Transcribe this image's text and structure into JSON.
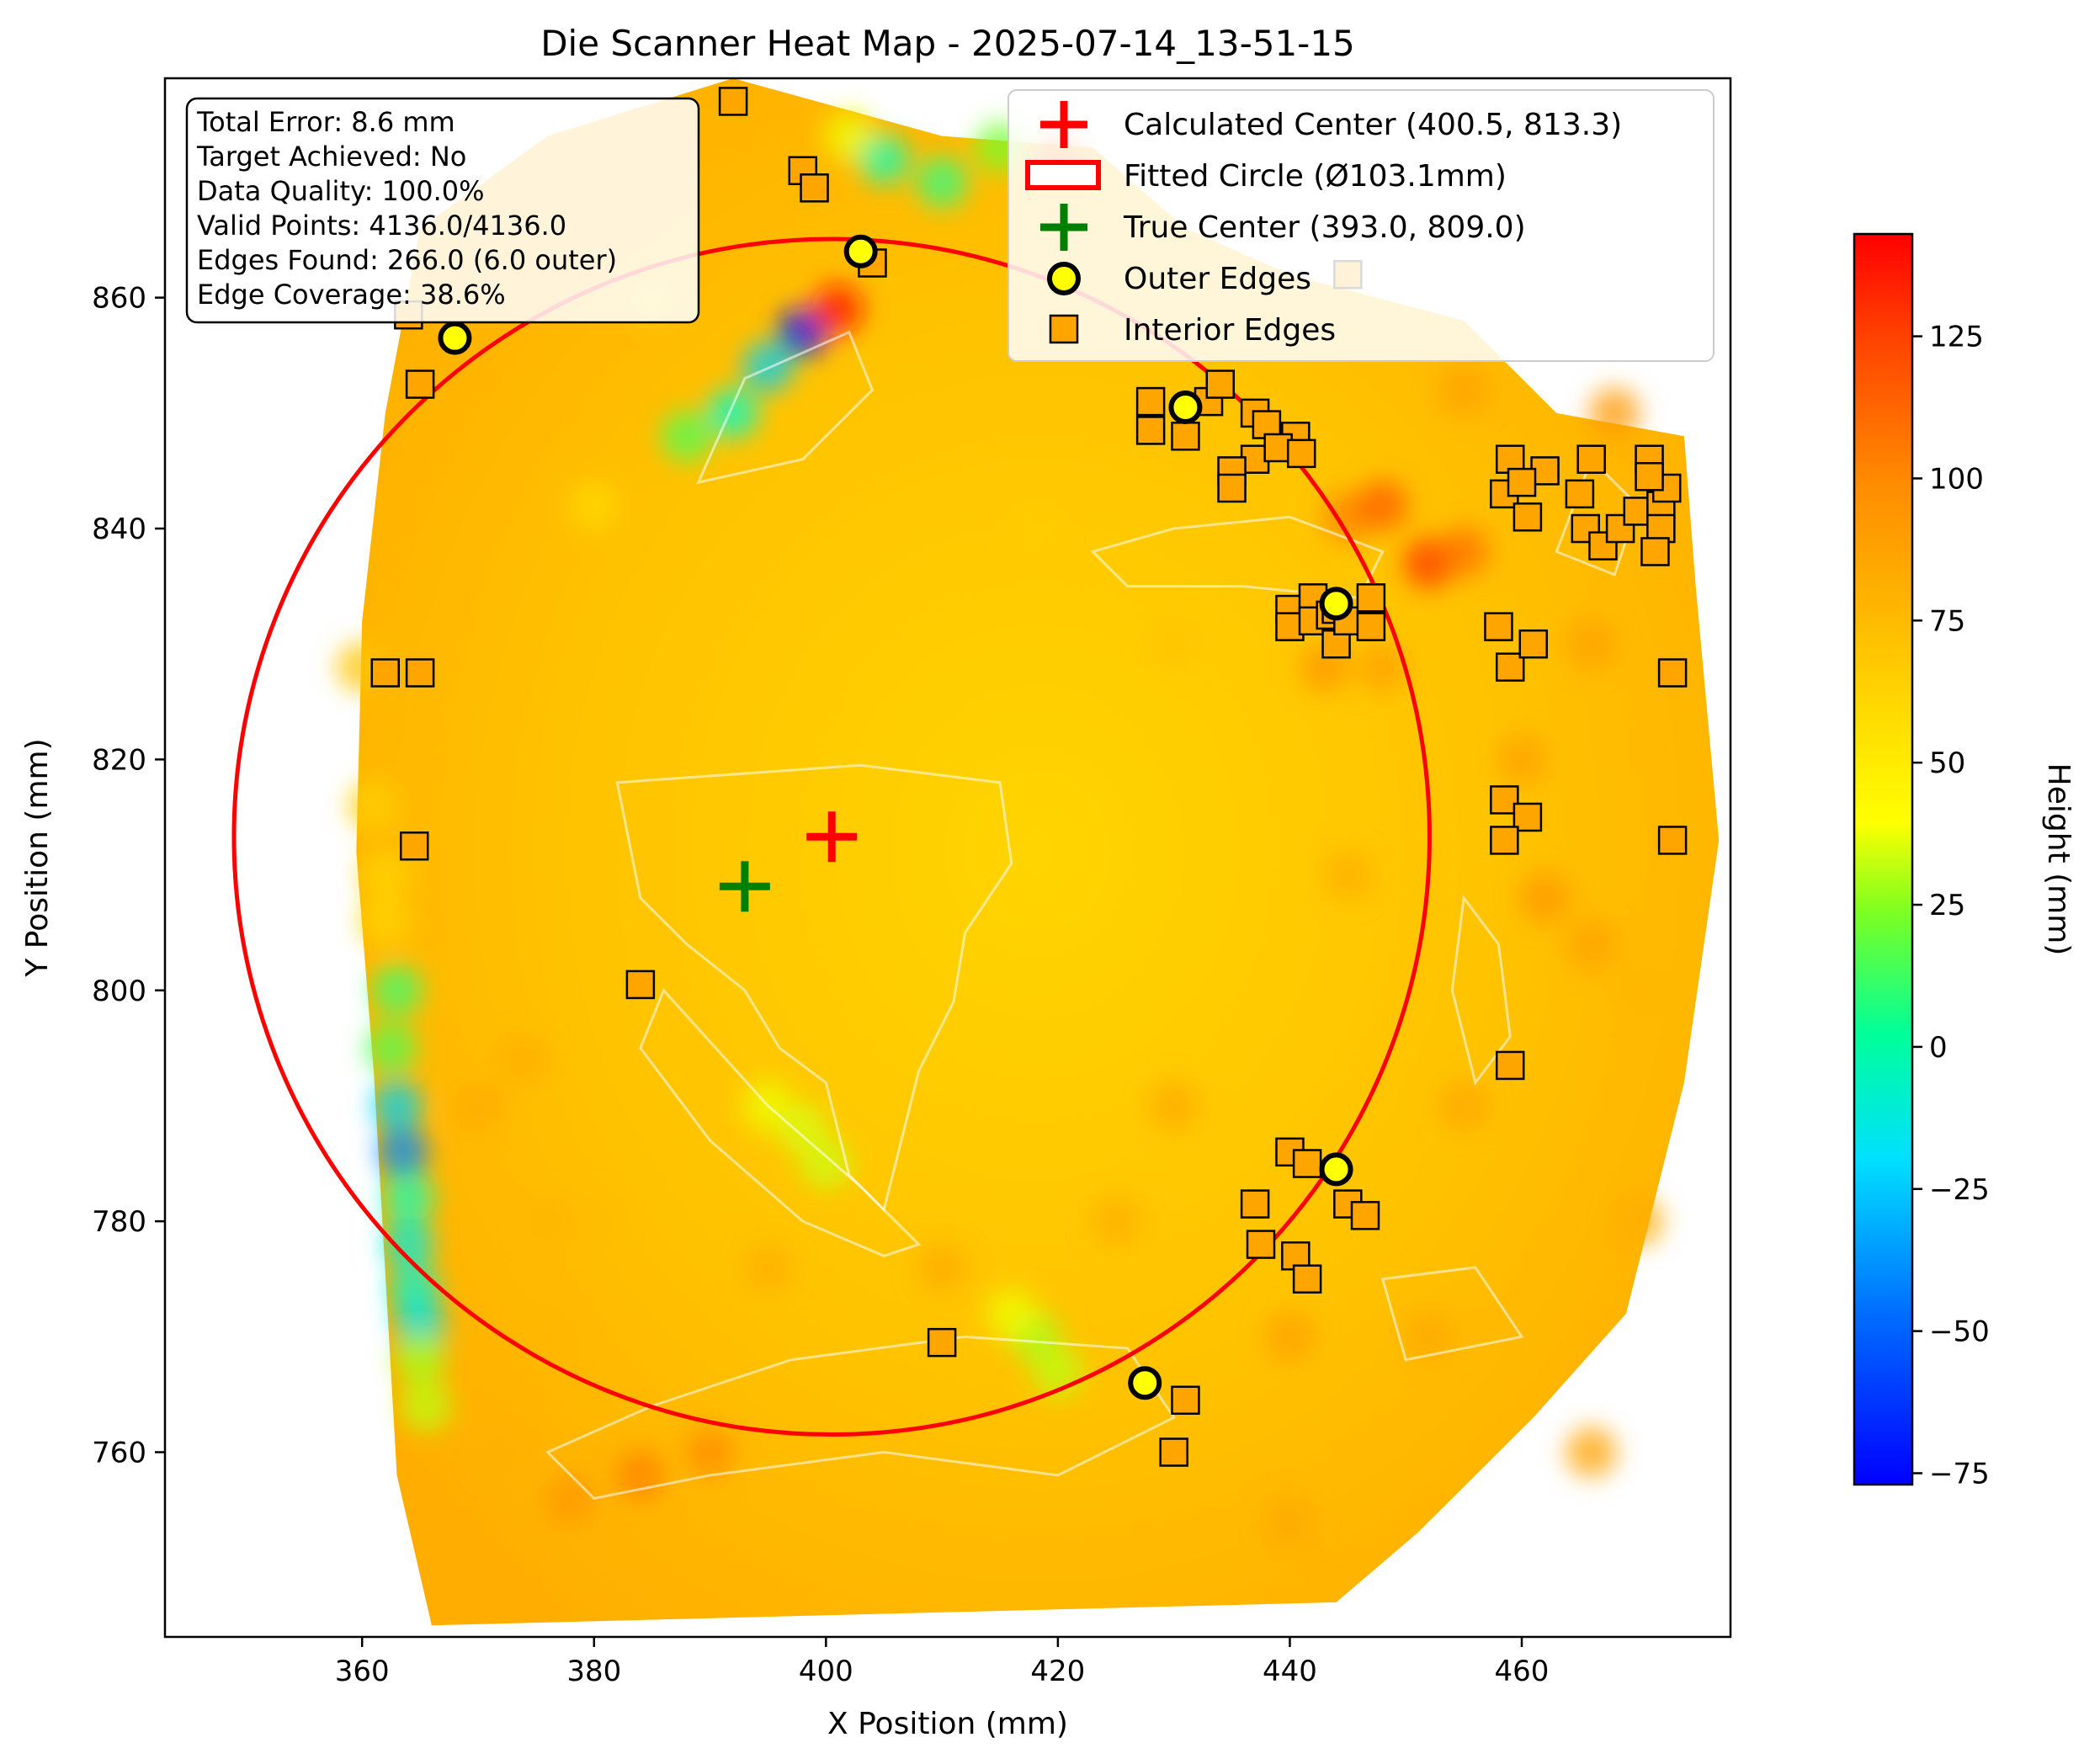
{
  "chart_data": {
    "type": "heatmap",
    "title": "Die Scanner Heat Map - 2025-07-14_13-51-15",
    "xlabel": "X Position (mm)",
    "ylabel": "Y Position (mm)",
    "xlim": [
      343,
      478
    ],
    "ylim": [
      744,
      879
    ],
    "x_ticks": [
      360,
      380,
      400,
      420,
      440,
      460
    ],
    "y_ticks": [
      760,
      780,
      800,
      820,
      840,
      860
    ],
    "grid": false,
    "colorbar": {
      "label": "Height (mm)",
      "range": [
        -77,
        143
      ],
      "ticks": [
        -75,
        -50,
        -25,
        0,
        25,
        50,
        75,
        100,
        125
      ],
      "colormap": [
        "#0000ff",
        "#00c8ff",
        "#00ffcc",
        "#66ff33",
        "#ffff00",
        "#ffc000",
        "#ff8000",
        "#ff0000"
      ]
    },
    "contour_levels": [
      40,
      60,
      80,
      100
    ],
    "stats": [
      "Total Error: 8.6 mm",
      "Target Achieved: No",
      "Data Quality: 100.0%",
      "Valid Points: 4136.0/4136.0",
      "Edges Found: 266.0 (6.0 outer)",
      "Edge Coverage: 38.6%"
    ],
    "legend": {
      "position": "top-right",
      "entries": [
        "Calculated Center (400.5, 813.3)",
        "Fitted Circle (Ø103.1mm)",
        "True Center (393.0, 809.0)",
        "Outer Edges",
        "Interior Edges"
      ]
    },
    "calculated_center": [
      400.5,
      813.3
    ],
    "true_center": [
      393.0,
      809.0
    ],
    "fitted_circle": {
      "center": [
        400.5,
        813.3
      ],
      "diameter": 103.1
    },
    "outer_edges": [
      [
        403,
        864
      ],
      [
        368,
        856.5
      ],
      [
        444,
        833.5
      ],
      [
        444,
        784.5
      ],
      [
        427.5,
        766
      ],
      [
        431,
        850.5
      ]
    ],
    "interior_edges": [
      [
        392,
        877
      ],
      [
        398,
        871
      ],
      [
        399,
        869.5
      ],
      [
        404,
        863
      ],
      [
        445,
        862
      ],
      [
        364,
        858.5
      ],
      [
        365,
        852.5
      ],
      [
        437,
        850
      ],
      [
        428,
        851
      ],
      [
        428,
        848.5
      ],
      [
        431,
        848
      ],
      [
        433,
        851
      ],
      [
        434,
        852.5
      ],
      [
        438,
        849
      ],
      [
        437,
        846
      ],
      [
        440.5,
        848
      ],
      [
        439,
        847
      ],
      [
        441,
        846.5
      ],
      [
        435,
        845
      ],
      [
        435,
        843.5
      ],
      [
        459,
        846
      ],
      [
        462,
        845
      ],
      [
        466,
        846
      ],
      [
        471,
        846
      ],
      [
        458.5,
        843
      ],
      [
        460,
        844
      ],
      [
        460.5,
        841
      ],
      [
        465,
        843
      ],
      [
        465.5,
        840
      ],
      [
        467,
        838.5
      ],
      [
        468.5,
        840
      ],
      [
        470,
        841.5
      ],
      [
        472,
        842
      ],
      [
        472.5,
        843.5
      ],
      [
        471,
        844.5
      ],
      [
        472,
        840
      ],
      [
        471.5,
        838
      ],
      [
        440,
        833
      ],
      [
        440,
        831.5
      ],
      [
        442,
        834
      ],
      [
        442,
        832
      ],
      [
        443.5,
        832.5
      ],
      [
        444,
        830
      ],
      [
        444,
        833
      ],
      [
        445,
        832
      ],
      [
        447,
        834
      ],
      [
        447,
        831.5
      ],
      [
        458,
        831.5
      ],
      [
        459,
        828
      ],
      [
        461,
        830
      ],
      [
        362,
        827.5
      ],
      [
        365,
        827.5
      ],
      [
        473,
        827.5
      ],
      [
        458.5,
        816.5
      ],
      [
        460.5,
        815
      ],
      [
        458.5,
        813
      ],
      [
        364.5,
        812.5
      ],
      [
        473,
        813
      ],
      [
        384,
        800.5
      ],
      [
        459,
        793.5
      ],
      [
        440,
        786
      ],
      [
        441.5,
        785
      ],
      [
        445,
        781.5
      ],
      [
        446.5,
        780.5
      ],
      [
        437,
        781.5
      ],
      [
        437.5,
        778
      ],
      [
        440.5,
        777
      ],
      [
        441.5,
        775
      ],
      [
        410,
        769.5
      ],
      [
        431,
        764.5
      ],
      [
        430,
        760
      ]
    ],
    "cells": [
      [
        360,
        828,
        78
      ],
      [
        361,
        816,
        72
      ],
      [
        362,
        806,
        70
      ],
      [
        363,
        800,
        5
      ],
      [
        362.5,
        795,
        10
      ],
      [
        363,
        790,
        -40
      ],
      [
        363.5,
        786,
        -55
      ],
      [
        364,
        782,
        -10
      ],
      [
        364,
        778,
        -25
      ],
      [
        364.5,
        774,
        -20
      ],
      [
        365,
        771,
        -30
      ],
      [
        365,
        768,
        30
      ],
      [
        365.5,
        764,
        35
      ],
      [
        380,
        842,
        68
      ],
      [
        385,
        860,
        70
      ],
      [
        388,
        848,
        10
      ],
      [
        392,
        850,
        -15
      ],
      [
        395,
        854,
        -40
      ],
      [
        398,
        857,
        -75
      ],
      [
        401,
        859,
        140
      ],
      [
        418,
        770,
        30
      ],
      [
        420,
        767,
        35
      ],
      [
        416,
        772,
        45
      ],
      [
        395,
        790,
        45
      ],
      [
        400,
        785,
        38
      ],
      [
        398,
        788,
        40
      ],
      [
        378,
        756,
        100
      ],
      [
        384,
        758,
        110
      ],
      [
        390,
        760,
        105
      ],
      [
        402,
        874,
        45
      ],
      [
        405,
        872,
        -10
      ],
      [
        410,
        870,
        0
      ],
      [
        415,
        873,
        20
      ],
      [
        420,
        872,
        120
      ],
      [
        445,
        841,
        110
      ],
      [
        448,
        842,
        120
      ],
      [
        452,
        837,
        130
      ],
      [
        455,
        838,
        115
      ],
      [
        443,
        828,
        100
      ],
      [
        448,
        828,
        95
      ],
      [
        460,
        820,
        95
      ],
      [
        462,
        808,
        100
      ],
      [
        466,
        804,
        95
      ],
      [
        430,
        790,
        90
      ],
      [
        440,
        770,
        95
      ],
      [
        452,
        770,
        92
      ],
      [
        425,
        780,
        88
      ],
      [
        410,
        776,
        90
      ],
      [
        370,
        790,
        90
      ],
      [
        374,
        794,
        88
      ],
      [
        376,
        780,
        85
      ],
      [
        470,
        800,
        85
      ],
      [
        470,
        780,
        90
      ],
      [
        466,
        760,
        95
      ],
      [
        440,
        754,
        92
      ],
      [
        380,
        780,
        82
      ],
      [
        445,
        810,
        88
      ],
      [
        455,
        852,
        95
      ],
      [
        468,
        850,
        100
      ],
      [
        466,
        830,
        95
      ],
      [
        430,
        830,
        78
      ],
      [
        418,
        840,
        74
      ],
      [
        376,
        770,
        85
      ],
      [
        395,
        776,
        88
      ],
      [
        362,
        810,
        70
      ],
      [
        372,
        760,
        88
      ],
      [
        455,
        790,
        92
      ]
    ]
  }
}
